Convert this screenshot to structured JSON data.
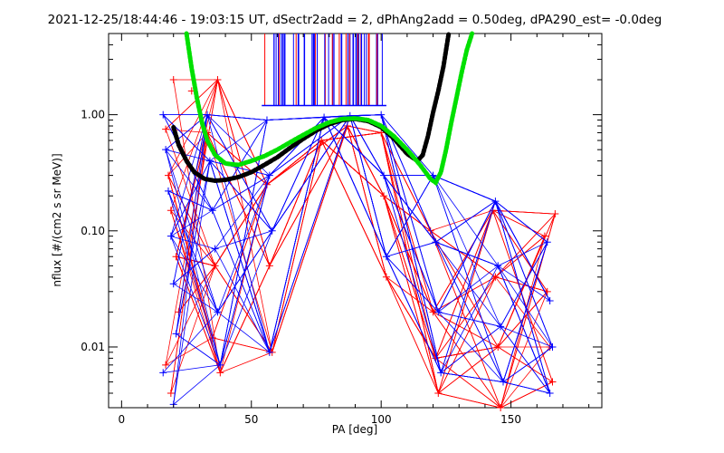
{
  "chart_data": {
    "type": "scatter",
    "title": "2021-12-25/18:44:46 - 19:03:15 UT, dSectr2add = 2, dPhAng2add = 0.50deg, dPA290_est=  -0.0deg",
    "xlabel": "PA [deg]",
    "ylabel": "nflux [#/(cm2 s sr MeV)]",
    "xlim": [
      -5,
      185
    ],
    "ylim": [
      0.003,
      5.0
    ],
    "yscale": "log",
    "x_ticks": [
      0,
      50,
      100,
      150
    ],
    "x_tick_labels": [
      "0",
      "50",
      "100",
      "150"
    ],
    "y_ticks": [
      0.01,
      0.1,
      1.0
    ],
    "y_tick_labels": [
      "0.01",
      "0.10",
      "1.00"
    ],
    "grid": false,
    "series": [
      {
        "color": "#ff0000",
        "marker": "plus",
        "values": [
          {
            "x": 17,
            "y": 0.75
          },
          {
            "x": 18,
            "y": 0.3
          },
          {
            "x": 19,
            "y": 0.15
          },
          {
            "x": 20,
            "y": 2.0
          },
          {
            "x": 21,
            "y": 0.06
          },
          {
            "x": 22,
            "y": 0.02
          },
          {
            "x": 17,
            "y": 0.007
          },
          {
            "x": 19,
            "y": 0.004
          },
          {
            "x": 27,
            "y": 1.6
          },
          {
            "x": 33,
            "y": 0.7
          },
          {
            "x": 37,
            "y": 2.0
          },
          {
            "x": 36,
            "y": 0.05
          },
          {
            "x": 35,
            "y": 0.012
          },
          {
            "x": 38,
            "y": 0.006
          },
          {
            "x": 56,
            "y": 0.25
          },
          {
            "x": 57,
            "y": 0.05
          },
          {
            "x": 58,
            "y": 0.009
          },
          {
            "x": 77,
            "y": 0.6
          },
          {
            "x": 87,
            "y": 0.8
          },
          {
            "x": 100,
            "y": 0.7
          },
          {
            "x": 101,
            "y": 0.2
          },
          {
            "x": 102,
            "y": 0.04
          },
          {
            "x": 119,
            "y": 0.1
          },
          {
            "x": 120,
            "y": 0.02
          },
          {
            "x": 121,
            "y": 0.008
          },
          {
            "x": 122,
            "y": 0.004
          },
          {
            "x": 143,
            "y": 0.15
          },
          {
            "x": 144,
            "y": 0.04
          },
          {
            "x": 145,
            "y": 0.01
          },
          {
            "x": 146,
            "y": 0.003
          },
          {
            "x": 163,
            "y": 0.09
          },
          {
            "x": 164,
            "y": 0.03
          },
          {
            "x": 165,
            "y": 0.01
          },
          {
            "x": 166,
            "y": 0.005
          },
          {
            "x": 167,
            "y": 0.14
          }
        ]
      },
      {
        "color": "#0000ff",
        "marker": "plus",
        "values": [
          {
            "x": 16,
            "y": 1.0
          },
          {
            "x": 17,
            "y": 0.5
          },
          {
            "x": 18,
            "y": 0.22
          },
          {
            "x": 19,
            "y": 0.09
          },
          {
            "x": 20,
            "y": 0.035
          },
          {
            "x": 21,
            "y": 0.013
          },
          {
            "x": 16,
            "y": 0.006
          },
          {
            "x": 20,
            "y": 0.0032
          },
          {
            "x": 33,
            "y": 1.0
          },
          {
            "x": 34,
            "y": 0.4
          },
          {
            "x": 35,
            "y": 0.15
          },
          {
            "x": 36,
            "y": 0.07
          },
          {
            "x": 37,
            "y": 0.02
          },
          {
            "x": 38,
            "y": 0.007
          },
          {
            "x": 56,
            "y": 0.9
          },
          {
            "x": 57,
            "y": 0.3
          },
          {
            "x": 58,
            "y": 0.1
          },
          {
            "x": 57,
            "y": 0.009
          },
          {
            "x": 78,
            "y": 0.95
          },
          {
            "x": 88,
            "y": 0.98
          },
          {
            "x": 100,
            "y": 1.0
          },
          {
            "x": 101,
            "y": 0.3
          },
          {
            "x": 102,
            "y": 0.06
          },
          {
            "x": 120,
            "y": 0.3
          },
          {
            "x": 121,
            "y": 0.08
          },
          {
            "x": 122,
            "y": 0.02
          },
          {
            "x": 123,
            "y": 0.006
          },
          {
            "x": 144,
            "y": 0.18
          },
          {
            "x": 145,
            "y": 0.05
          },
          {
            "x": 146,
            "y": 0.015
          },
          {
            "x": 147,
            "y": 0.005
          },
          {
            "x": 164,
            "y": 0.08
          },
          {
            "x": 165,
            "y": 0.025
          },
          {
            "x": 166,
            "y": 0.01
          },
          {
            "x": 165,
            "y": 0.004
          }
        ]
      },
      {
        "color": "#000000",
        "style": "thick-dotted",
        "values": [
          {
            "x": 20,
            "y": 0.78
          },
          {
            "x": 22,
            "y": 0.55
          },
          {
            "x": 25,
            "y": 0.4
          },
          {
            "x": 28,
            "y": 0.32
          },
          {
            "x": 32,
            "y": 0.28
          },
          {
            "x": 36,
            "y": 0.27
          },
          {
            "x": 40,
            "y": 0.275
          },
          {
            "x": 45,
            "y": 0.29
          },
          {
            "x": 50,
            "y": 0.32
          },
          {
            "x": 55,
            "y": 0.37
          },
          {
            "x": 60,
            "y": 0.43
          },
          {
            "x": 65,
            "y": 0.52
          },
          {
            "x": 70,
            "y": 0.62
          },
          {
            "x": 75,
            "y": 0.73
          },
          {
            "x": 80,
            "y": 0.83
          },
          {
            "x": 85,
            "y": 0.9
          },
          {
            "x": 90,
            "y": 0.92
          },
          {
            "x": 95,
            "y": 0.88
          },
          {
            "x": 100,
            "y": 0.78
          },
          {
            "x": 105,
            "y": 0.62
          },
          {
            "x": 110,
            "y": 0.46
          },
          {
            "x": 114,
            "y": 0.4
          },
          {
            "x": 116,
            "y": 0.45
          },
          {
            "x": 118,
            "y": 0.65
          },
          {
            "x": 120,
            "y": 1.05
          },
          {
            "x": 122,
            "y": 1.6
          },
          {
            "x": 124,
            "y": 2.6
          },
          {
            "x": 126,
            "y": 5.0
          }
        ]
      },
      {
        "color": "#00e000",
        "style": "thick-dotted",
        "values": [
          {
            "x": 25,
            "y": 5.0
          },
          {
            "x": 27,
            "y": 2.5
          },
          {
            "x": 29,
            "y": 1.4
          },
          {
            "x": 31,
            "y": 0.85
          },
          {
            "x": 33,
            "y": 0.6
          },
          {
            "x": 36,
            "y": 0.45
          },
          {
            "x": 40,
            "y": 0.38
          },
          {
            "x": 45,
            "y": 0.37
          },
          {
            "x": 50,
            "y": 0.4
          },
          {
            "x": 55,
            "y": 0.44
          },
          {
            "x": 60,
            "y": 0.5
          },
          {
            "x": 65,
            "y": 0.58
          },
          {
            "x": 70,
            "y": 0.67
          },
          {
            "x": 75,
            "y": 0.77
          },
          {
            "x": 80,
            "y": 0.86
          },
          {
            "x": 85,
            "y": 0.92
          },
          {
            "x": 90,
            "y": 0.93
          },
          {
            "x": 95,
            "y": 0.9
          },
          {
            "x": 100,
            "y": 0.8
          },
          {
            "x": 105,
            "y": 0.65
          },
          {
            "x": 110,
            "y": 0.5
          },
          {
            "x": 115,
            "y": 0.37
          },
          {
            "x": 119,
            "y": 0.28
          },
          {
            "x": 121,
            "y": 0.26
          },
          {
            "x": 123,
            "y": 0.32
          },
          {
            "x": 125,
            "y": 0.5
          },
          {
            "x": 127,
            "y": 0.85
          },
          {
            "x": 129,
            "y": 1.4
          },
          {
            "x": 131,
            "y": 2.3
          },
          {
            "x": 133,
            "y": 3.6
          },
          {
            "x": 135,
            "y": 5.0
          }
        ]
      }
    ]
  }
}
